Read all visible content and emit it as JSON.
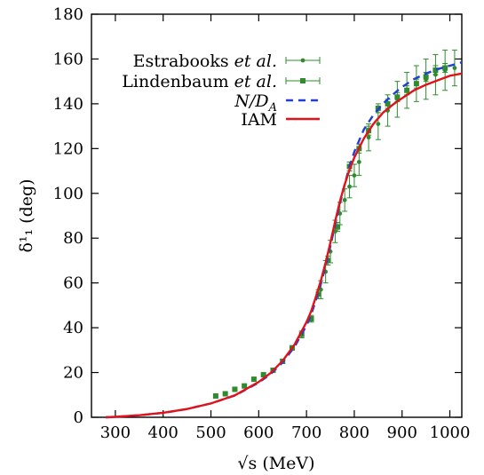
{
  "chart_data": {
    "type": "line",
    "xlabel": "√s (MeV)",
    "ylabel": "δ¹₁ (deg)",
    "xlim": [
      250,
      1025
    ],
    "ylim": [
      0,
      180
    ],
    "x_ticks": [
      300,
      400,
      500,
      600,
      700,
      800,
      900,
      1000
    ],
    "y_ticks": [
      0,
      20,
      40,
      60,
      80,
      100,
      120,
      140,
      160,
      180
    ],
    "grid": false,
    "legend_position": "top-left",
    "series": [
      {
        "name": "Estrabooks et al.",
        "kind": "errorbar",
        "marker": "circle",
        "color": "#2e8b2e",
        "x": [
          730,
          740,
          750,
          760,
          770,
          780,
          790,
          800,
          810,
          830,
          850,
          870,
          890,
          910,
          930,
          950,
          970,
          990,
          1010
        ],
        "y": [
          57,
          65,
          74,
          83,
          91,
          97,
          103,
          108,
          114,
          125,
          131,
          137,
          142,
          146,
          149,
          151,
          153,
          155,
          156
        ],
        "yerr": [
          4,
          5,
          5,
          5,
          5,
          5,
          5,
          5,
          6,
          6,
          7,
          7,
          8,
          8,
          8,
          9,
          9,
          9,
          8
        ]
      },
      {
        "name": "Lindenbaum et al.",
        "kind": "errorbar",
        "marker": "square",
        "color": "#2e8b2e",
        "x": [
          510,
          530,
          550,
          570,
          590,
          610,
          630,
          650,
          670,
          690,
          710,
          725,
          745,
          765,
          790,
          810,
          830,
          850,
          870,
          890,
          910,
          930,
          950,
          970,
          990
        ],
        "y": [
          9.5,
          10.5,
          12.5,
          14,
          17,
          19,
          21,
          25,
          31,
          37,
          44,
          55,
          70,
          85,
          112,
          120,
          128,
          138,
          140,
          143,
          146,
          149,
          152,
          155,
          156
        ],
        "yerr": [
          0.5,
          0.5,
          0.6,
          0.6,
          0.7,
          0.8,
          0.8,
          1,
          1,
          1.5,
          1.5,
          2,
          2,
          2,
          2,
          2,
          2,
          2,
          2,
          2,
          2,
          2,
          2,
          2,
          2
        ]
      },
      {
        "name": "N/D_A",
        "kind": "line",
        "style": "dashed",
        "color": "#1f3fd6",
        "x": [
          280,
          300,
          350,
          400,
          450,
          500,
          550,
          600,
          625,
          650,
          675,
          700,
          710,
          720,
          730,
          740,
          750,
          760,
          770,
          780,
          790,
          800,
          820,
          840,
          860,
          880,
          900,
          925,
          950,
          975,
          1000,
          1025
        ],
        "y": [
          0,
          0.2,
          0.9,
          2.0,
          3.7,
          6.2,
          9.7,
          15.5,
          19.3,
          24.5,
          31.5,
          41,
          46,
          52.5,
          59.5,
          67.5,
          76.5,
          86,
          95.5,
          104,
          112,
          118.5,
          128.5,
          135,
          140,
          144,
          147.5,
          151,
          153.5,
          155.5,
          157,
          158.5
        ]
      },
      {
        "name": "IAM",
        "kind": "line",
        "style": "solid",
        "color": "#e0121a",
        "x": [
          280,
          300,
          350,
          400,
          450,
          500,
          550,
          600,
          625,
          650,
          675,
          700,
          710,
          720,
          730,
          740,
          750,
          760,
          770,
          780,
          790,
          800,
          820,
          840,
          860,
          880,
          900,
          925,
          950,
          975,
          1000,
          1025
        ],
        "y": [
          0,
          0.2,
          0.9,
          2.0,
          3.7,
          6.2,
          9.8,
          15.8,
          19.8,
          25.2,
          32.5,
          42.5,
          47.5,
          54,
          61,
          69,
          78,
          87.5,
          96.5,
          104,
          110.5,
          116,
          124.5,
          131,
          136,
          139.5,
          142.5,
          146,
          148.5,
          150.5,
          152.5,
          153.5
        ]
      }
    ]
  }
}
